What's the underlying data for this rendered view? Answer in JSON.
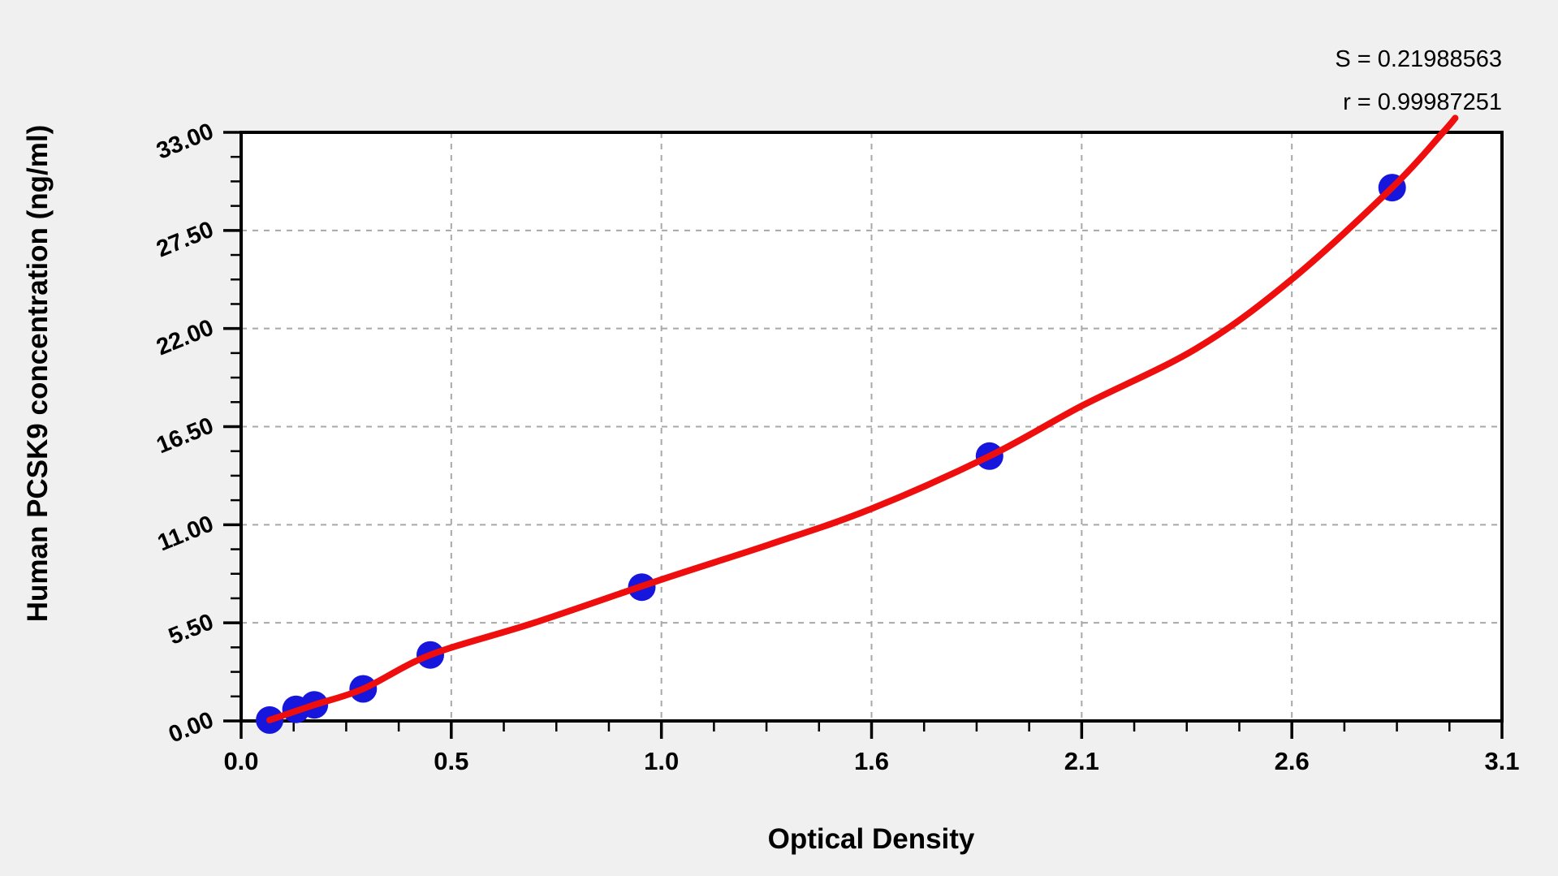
{
  "page": {
    "background_color": "#f0f0f0",
    "plot_background_color": "#ffffff"
  },
  "annotations": {
    "s_label": "S = 0.21988563",
    "r_label": "r = 0.99987251",
    "s_value": "0.21988563",
    "r_value": "0.99987251"
  },
  "chart_data": {
    "type": "scatter",
    "title": "",
    "xlabel": "Optical Density",
    "ylabel": "Human PCSK9 concentration (ng/ml)",
    "x_axis": {
      "min": 0,
      "max": 3.1,
      "tick_labels": [
        "0.0",
        "0.5",
        "1.0",
        "1.6",
        "2.1",
        "2.6",
        "3.1"
      ],
      "minor_divisions": 4
    },
    "y_axis": {
      "min": 0,
      "max": 33,
      "tick_labels": [
        "0.00",
        "5.50",
        "11.00",
        "16.50",
        "22.00",
        "27.50",
        "33.00"
      ],
      "minor_divisions": 4
    },
    "grid": {
      "style": "dashed",
      "color": "#a8a8a8",
      "on_major_ticks": true
    },
    "legend": "none",
    "series": [
      {
        "name": "standard-points",
        "type": "scatter",
        "color": "#1616dd",
        "marker_radius": 17,
        "points_od_conc": [
          [
            0.07,
            0.05
          ],
          [
            0.135,
            0.65
          ],
          [
            0.18,
            0.9
          ],
          [
            0.3,
            1.8
          ],
          [
            0.465,
            3.7
          ],
          [
            0.985,
            7.5
          ],
          [
            1.84,
            14.85
          ],
          [
            2.83,
            29.9
          ]
        ]
      },
      {
        "name": "fitted-curve",
        "type": "line",
        "color": "#ee0e0e",
        "stroke_width": 8,
        "points_od_conc": [
          [
            0.07,
            0.05
          ],
          [
            0.18,
            0.9
          ],
          [
            0.3,
            1.8
          ],
          [
            0.465,
            3.7
          ],
          [
            0.72,
            5.5
          ],
          [
            1.03,
            7.9
          ],
          [
            1.3,
            9.9
          ],
          [
            1.55,
            11.9
          ],
          [
            1.84,
            14.85
          ],
          [
            2.07,
            17.7
          ],
          [
            2.35,
            20.9
          ],
          [
            2.58,
            24.7
          ],
          [
            2.83,
            29.9
          ],
          [
            2.955,
            33.0
          ],
          [
            2.985,
            33.8
          ]
        ]
      }
    ]
  }
}
